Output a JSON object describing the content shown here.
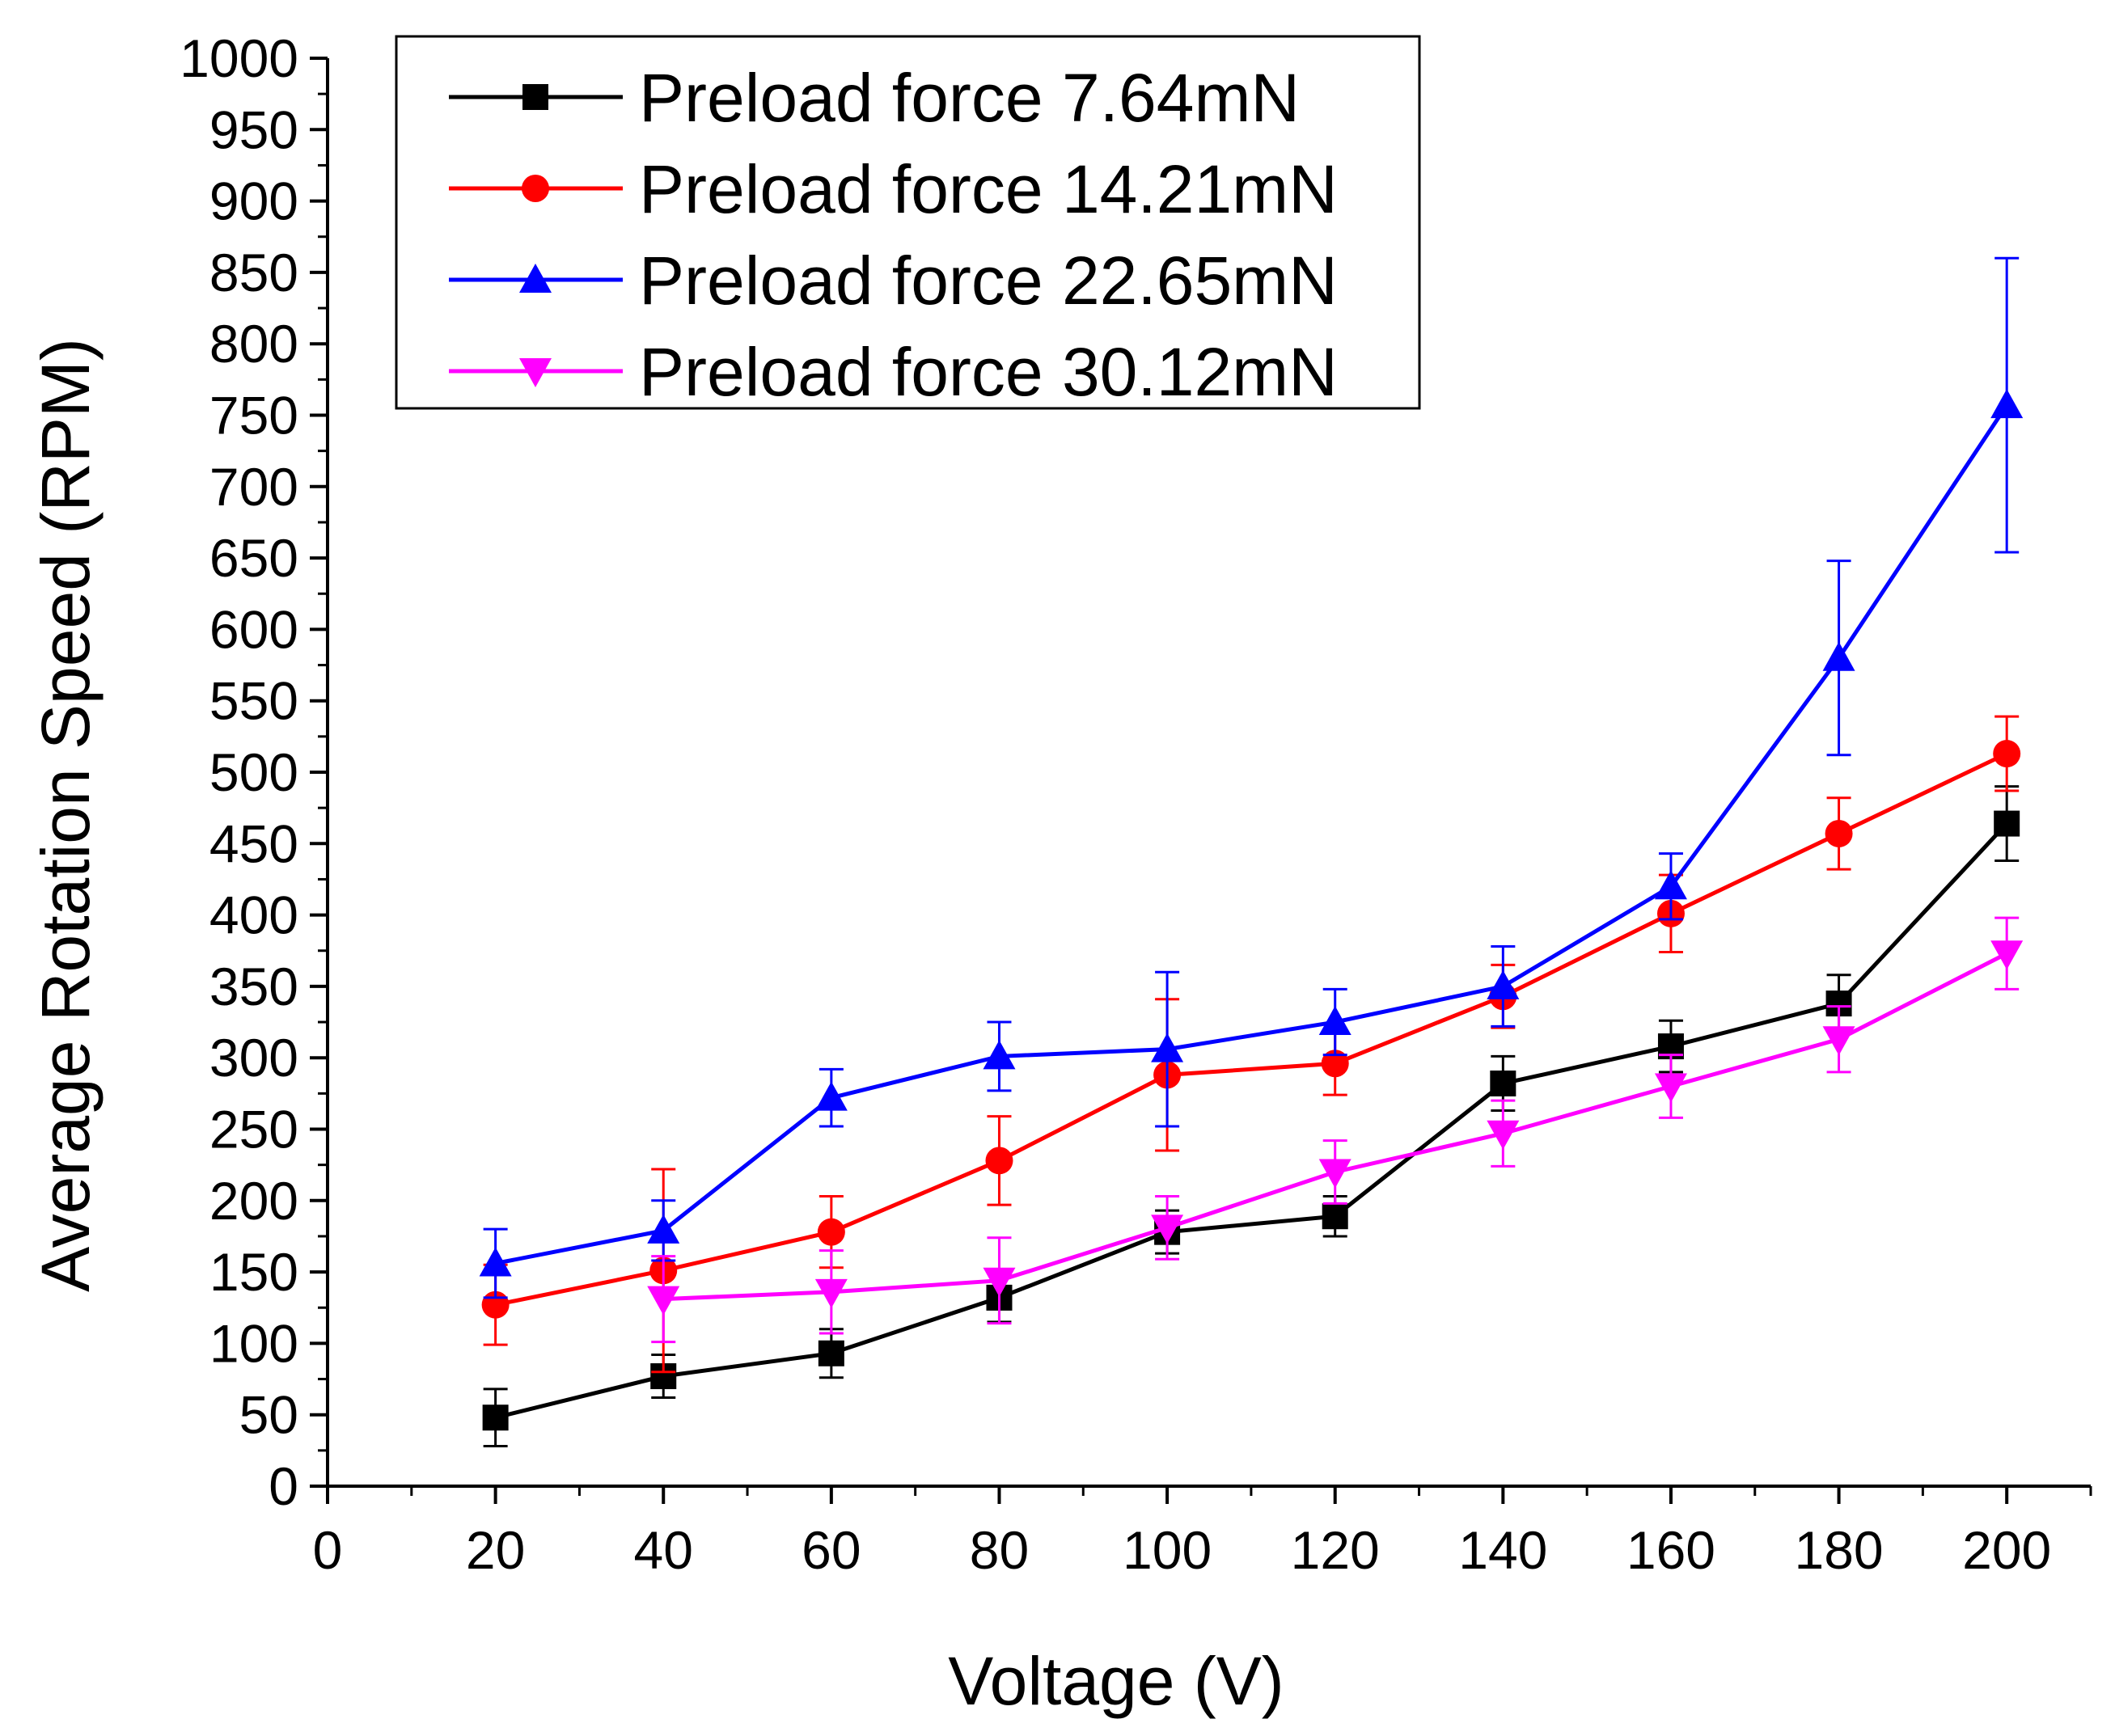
{
  "chart_data": {
    "type": "line",
    "title": "",
    "xlabel": "Voltage (V)",
    "ylabel": "Average Rotation Speed (RPM)",
    "xlim": [
      0,
      210
    ],
    "ylim": [
      0,
      1000
    ],
    "x_ticks": [
      0,
      20,
      40,
      60,
      80,
      100,
      120,
      140,
      160,
      180,
      200
    ],
    "y_ticks": [
      0,
      50,
      100,
      150,
      200,
      250,
      300,
      350,
      400,
      450,
      500,
      550,
      600,
      650,
      700,
      750,
      800,
      850,
      900,
      950,
      1000
    ],
    "grid": false,
    "legend_position": "top-left",
    "x": [
      20,
      40,
      60,
      80,
      100,
      120,
      140,
      160,
      180,
      200
    ],
    "series": [
      {
        "name": "Preload force 7.64mN",
        "color": "#000000",
        "marker": "square",
        "values": [
          48,
          77,
          93,
          132,
          178,
          189,
          282,
          308,
          338,
          464
        ],
        "errors": [
          20,
          15,
          17,
          17,
          15,
          14,
          19,
          18,
          20,
          26
        ]
      },
      {
        "name": "Preload force 14.21mN",
        "color": "#ff0000",
        "marker": "circle",
        "values": [
          127,
          151,
          178,
          228,
          288,
          296,
          343,
          401,
          457,
          513
        ],
        "errors": [
          28,
          71,
          25,
          31,
          53,
          22,
          22,
          27,
          25,
          26
        ]
      },
      {
        "name": "Preload force 22.65mN",
        "color": "#0000ff",
        "marker": "triangle-up",
        "values": [
          156,
          179,
          272,
          301,
          306,
          325,
          350,
          420,
          580,
          757
        ],
        "errors": [
          24,
          21,
          20,
          24,
          54,
          23,
          28,
          23,
          68,
          103
        ]
      },
      {
        "name": "Preload force 30.12mN",
        "color": "#ff00ff",
        "marker": "triangle-down",
        "values": [
          null,
          131,
          136,
          144,
          181,
          220,
          247,
          280,
          313,
          373
        ],
        "errors": [
          null,
          30,
          29,
          30,
          22,
          22,
          23,
          22,
          23,
          25
        ]
      }
    ]
  }
}
